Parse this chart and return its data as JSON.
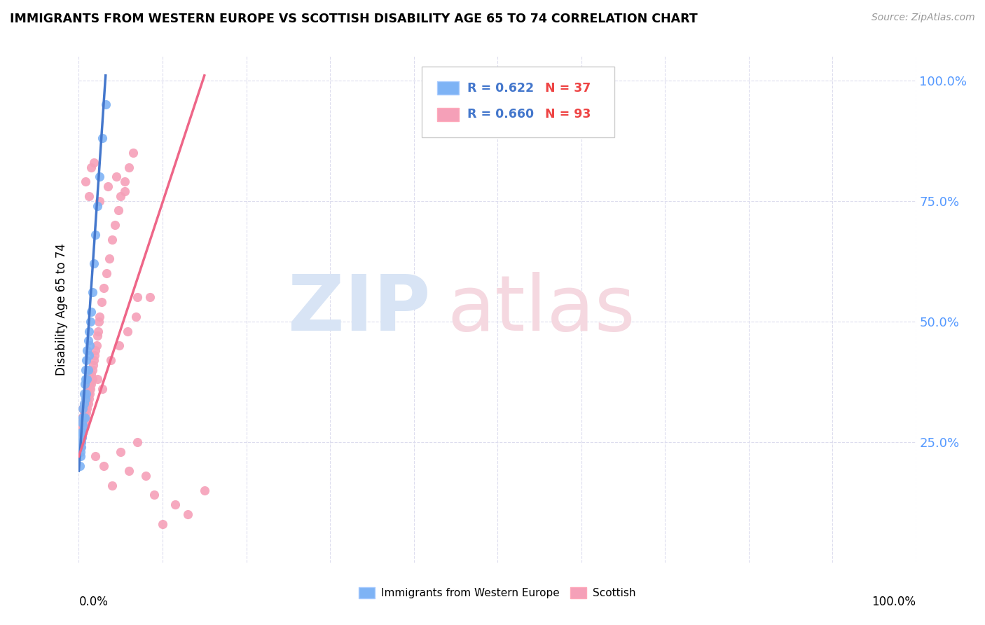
{
  "title": "IMMIGRANTS FROM WESTERN EUROPE VS SCOTTISH DISABILITY AGE 65 TO 74 CORRELATION CHART",
  "source": "Source: ZipAtlas.com",
  "ylabel": "Disability Age 65 to 74",
  "blue_color": "#7EB3F5",
  "pink_color": "#F5A0B8",
  "blue_line_color": "#4477CC",
  "pink_line_color": "#EE6688",
  "legend_r_color": "#4477CC",
  "legend_n_color": "#EE4444",
  "ytick_color": "#5599FF",
  "watermark_zip_color": "#D8E4F5",
  "watermark_atlas_color": "#F5D8E0",
  "blue_x": [
    0.001,
    0.002,
    0.002,
    0.003,
    0.003,
    0.003,
    0.004,
    0.004,
    0.005,
    0.005,
    0.005,
    0.006,
    0.006,
    0.006,
    0.007,
    0.007,
    0.008,
    0.008,
    0.008,
    0.009,
    0.009,
    0.01,
    0.01,
    0.011,
    0.011,
    0.012,
    0.012,
    0.013,
    0.014,
    0.015,
    0.016,
    0.018,
    0.02,
    0.022,
    0.025,
    0.028,
    0.032
  ],
  "blue_y": [
    0.2,
    0.22,
    0.23,
    0.24,
    0.25,
    0.27,
    0.26,
    0.29,
    0.27,
    0.3,
    0.32,
    0.28,
    0.33,
    0.35,
    0.3,
    0.37,
    0.34,
    0.38,
    0.4,
    0.35,
    0.42,
    0.38,
    0.44,
    0.4,
    0.46,
    0.43,
    0.48,
    0.45,
    0.5,
    0.52,
    0.56,
    0.62,
    0.68,
    0.74,
    0.8,
    0.88,
    0.95
  ],
  "pink_x": [
    0.001,
    0.001,
    0.001,
    0.002,
    0.002,
    0.002,
    0.002,
    0.003,
    0.003,
    0.003,
    0.003,
    0.004,
    0.004,
    0.004,
    0.004,
    0.005,
    0.005,
    0.005,
    0.005,
    0.006,
    0.006,
    0.006,
    0.007,
    0.007,
    0.007,
    0.008,
    0.008,
    0.008,
    0.009,
    0.009,
    0.009,
    0.01,
    0.01,
    0.011,
    0.011,
    0.012,
    0.012,
    0.013,
    0.013,
    0.014,
    0.014,
    0.015,
    0.015,
    0.016,
    0.016,
    0.017,
    0.018,
    0.019,
    0.02,
    0.021,
    0.022,
    0.023,
    0.024,
    0.025,
    0.027,
    0.03,
    0.033,
    0.036,
    0.04,
    0.043,
    0.047,
    0.05,
    0.055,
    0.06,
    0.065,
    0.07,
    0.08,
    0.09,
    0.1,
    0.115,
    0.13,
    0.15,
    0.02,
    0.03,
    0.04,
    0.05,
    0.06,
    0.07,
    0.035,
    0.045,
    0.025,
    0.055,
    0.015,
    0.008,
    0.012,
    0.018,
    0.022,
    0.028,
    0.038,
    0.048,
    0.058,
    0.068,
    0.085
  ],
  "pink_y": [
    0.24,
    0.25,
    0.26,
    0.24,
    0.25,
    0.26,
    0.28,
    0.25,
    0.26,
    0.27,
    0.29,
    0.26,
    0.27,
    0.28,
    0.3,
    0.27,
    0.28,
    0.3,
    0.32,
    0.28,
    0.29,
    0.31,
    0.29,
    0.3,
    0.33,
    0.3,
    0.32,
    0.34,
    0.31,
    0.33,
    0.35,
    0.32,
    0.34,
    0.33,
    0.35,
    0.34,
    0.36,
    0.35,
    0.37,
    0.36,
    0.38,
    0.37,
    0.39,
    0.38,
    0.4,
    0.41,
    0.42,
    0.43,
    0.44,
    0.45,
    0.47,
    0.48,
    0.5,
    0.51,
    0.54,
    0.57,
    0.6,
    0.63,
    0.67,
    0.7,
    0.73,
    0.76,
    0.79,
    0.82,
    0.85,
    0.55,
    0.18,
    0.14,
    0.08,
    0.12,
    0.1,
    0.15,
    0.22,
    0.2,
    0.16,
    0.23,
    0.19,
    0.25,
    0.78,
    0.8,
    0.75,
    0.77,
    0.82,
    0.79,
    0.76,
    0.83,
    0.38,
    0.36,
    0.42,
    0.45,
    0.48,
    0.51,
    0.55
  ],
  "blue_line_x": [
    0.0,
    0.032
  ],
  "blue_line_y_start": 0.19,
  "blue_line_y_end": 1.01,
  "pink_line_x": [
    0.0,
    0.15
  ],
  "pink_line_y_start": 0.22,
  "pink_line_y_end": 1.01,
  "xlim": [
    0,
    1.0
  ],
  "ylim": [
    0,
    1.05
  ],
  "xgrid_ticks": [
    0.0,
    0.1,
    0.2,
    0.3,
    0.4,
    0.5,
    0.6,
    0.7,
    0.8,
    0.9,
    1.0
  ],
  "ygrid_ticks": [
    0.25,
    0.5,
    0.75,
    1.0
  ]
}
